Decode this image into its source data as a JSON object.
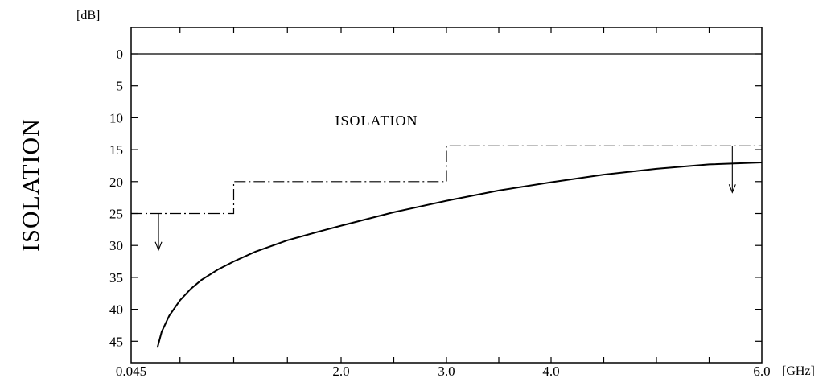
{
  "chart_data": {
    "type": "line",
    "title": "",
    "ylabel": "ISOLATION",
    "y_unit": "[dB]",
    "x_unit": "[GHz]",
    "y_inverted": true,
    "ylim": [
      0,
      46
    ],
    "xlim": [
      0.045,
      6.0
    ],
    "x_tick_labels": [
      "0.045",
      "2.0",
      "3.0",
      "4.0",
      "6.0"
    ],
    "x_tick_positions": [
      0.045,
      2.0,
      3.0,
      4.0,
      6.0
    ],
    "y_tick_labels": [
      "0",
      "5",
      "10",
      "15",
      "20",
      "25",
      "30",
      "35",
      "40",
      "45"
    ],
    "y_ticks": [
      0,
      5,
      10,
      15,
      20,
      25,
      30,
      35,
      40,
      45
    ],
    "grid": false,
    "annotations": [
      {
        "text": "ISOLATION",
        "x": 2.05,
        "y": 11.2
      }
    ],
    "spec_limit": {
      "style": "dash-dot",
      "segments": [
        {
          "x_start": 0.045,
          "x_end": 1.0,
          "y": 25
        },
        {
          "x_start": 1.0,
          "x_end": 3.0,
          "y": 20
        },
        {
          "x_start": 3.0,
          "x_end": 6.0,
          "y": 14.4
        }
      ],
      "arrows": [
        {
          "x": 0.3,
          "y_from": 25,
          "y_to": 30.7
        },
        {
          "x": 5.72,
          "y_from": 14.4,
          "y_to": 21.7
        }
      ]
    },
    "series": [
      {
        "x": [
          0.29,
          0.33,
          0.4,
          0.5,
          0.6,
          0.7,
          0.85,
          1.0,
          1.2,
          1.5,
          1.8,
          2.0,
          2.5,
          3.0,
          3.5,
          4.0,
          4.5,
          5.0,
          5.5,
          6.0
        ],
        "y": [
          46,
          43.5,
          41.0,
          38.6,
          36.8,
          35.4,
          33.8,
          32.5,
          31.0,
          29.2,
          27.8,
          26.9,
          24.8,
          23.0,
          21.4,
          20.1,
          18.9,
          18.0,
          17.3,
          17.0
        ]
      }
    ]
  }
}
